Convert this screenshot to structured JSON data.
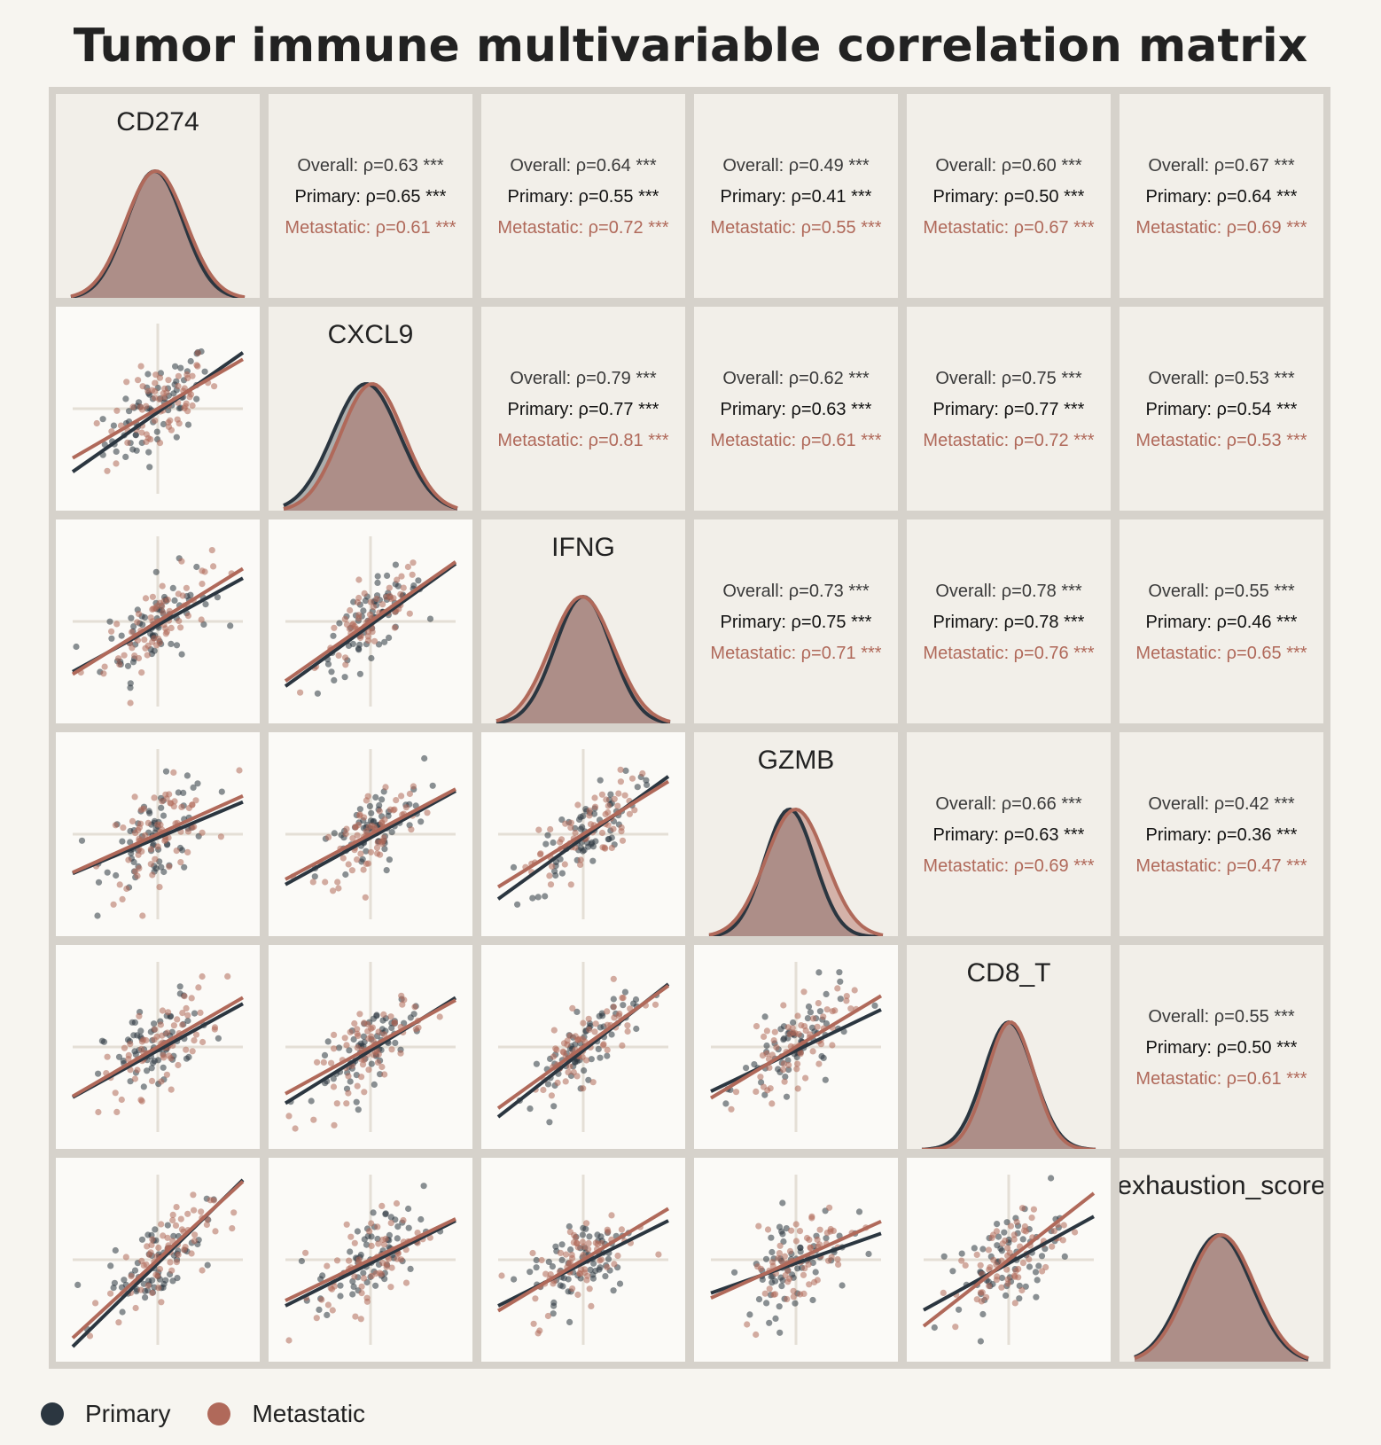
{
  "title": "Tumor immune multivariable correlation matrix",
  "colors": {
    "primary": "#2b3640",
    "metastatic": "#b0695a",
    "frame": "#d6d2cb",
    "background": "#f7f5f0"
  },
  "legend": [
    {
      "name": "Primary",
      "color": "#2b3640"
    },
    {
      "name": "Metastatic",
      "color": "#b0695a"
    }
  ],
  "chart_data": {
    "type": "scatter",
    "title": "Tumor immune multivariable correlation matrix",
    "variables": [
      "CD274",
      "CXCL9",
      "IFNG",
      "GZMB",
      "CD8_T",
      "exhaustion_score"
    ],
    "groups": [
      "Primary",
      "Metastatic"
    ],
    "correlations": [
      {
        "pair": [
          "CD274",
          "CXCL9"
        ],
        "overall": "Overall: ρ=0.63 ***",
        "primary": "Primary: ρ=0.65 ***",
        "metastatic": "Metastatic: ρ=0.61 ***"
      },
      {
        "pair": [
          "CD274",
          "IFNG"
        ],
        "overall": "Overall: ρ=0.64 ***",
        "primary": "Primary: ρ=0.55 ***",
        "metastatic": "Metastatic: ρ=0.72 ***"
      },
      {
        "pair": [
          "CD274",
          "GZMB"
        ],
        "overall": "Overall: ρ=0.49 ***",
        "primary": "Primary: ρ=0.41 ***",
        "metastatic": "Metastatic: ρ=0.55 ***"
      },
      {
        "pair": [
          "CD274",
          "CD8_T"
        ],
        "overall": "Overall: ρ=0.60 ***",
        "primary": "Primary: ρ=0.50 ***",
        "metastatic": "Metastatic: ρ=0.67 ***"
      },
      {
        "pair": [
          "CD274",
          "exhaustion_score"
        ],
        "overall": "Overall: ρ=0.67 ***",
        "primary": "Primary: ρ=0.64 ***",
        "metastatic": "Metastatic: ρ=0.69 ***"
      },
      {
        "pair": [
          "CXCL9",
          "IFNG"
        ],
        "overall": "Overall: ρ=0.79 ***",
        "primary": "Primary: ρ=0.77 ***",
        "metastatic": "Metastatic: ρ=0.81 ***"
      },
      {
        "pair": [
          "CXCL9",
          "GZMB"
        ],
        "overall": "Overall: ρ=0.62 ***",
        "primary": "Primary: ρ=0.63 ***",
        "metastatic": "Metastatic: ρ=0.61 ***"
      },
      {
        "pair": [
          "CXCL9",
          "CD8_T"
        ],
        "overall": "Overall: ρ=0.75 ***",
        "primary": "Primary: ρ=0.77 ***",
        "metastatic": "Metastatic: ρ=0.72 ***"
      },
      {
        "pair": [
          "CXCL9",
          "exhaustion_score"
        ],
        "overall": "Overall: ρ=0.53 ***",
        "primary": "Primary: ρ=0.54 ***",
        "metastatic": "Metastatic: ρ=0.53 ***"
      },
      {
        "pair": [
          "IFNG",
          "GZMB"
        ],
        "overall": "Overall: ρ=0.73 ***",
        "primary": "Primary: ρ=0.75 ***",
        "metastatic": "Metastatic: ρ=0.71 ***"
      },
      {
        "pair": [
          "IFNG",
          "CD8_T"
        ],
        "overall": "Overall: ρ=0.78 ***",
        "primary": "Primary: ρ=0.78 ***",
        "metastatic": "Metastatic: ρ=0.76 ***"
      },
      {
        "pair": [
          "IFNG",
          "exhaustion_score"
        ],
        "overall": "Overall: ρ=0.55 ***",
        "primary": "Primary: ρ=0.46 ***",
        "metastatic": "Metastatic: ρ=0.65 ***"
      },
      {
        "pair": [
          "GZMB",
          "CD8_T"
        ],
        "overall": "Overall: ρ=0.66 ***",
        "primary": "Primary: ρ=0.63 ***",
        "metastatic": "Metastatic: ρ=0.69 ***"
      },
      {
        "pair": [
          "GZMB",
          "exhaustion_score"
        ],
        "overall": "Overall: ρ=0.42 ***",
        "primary": "Primary: ρ=0.36 ***",
        "metastatic": "Metastatic: ρ=0.47 ***"
      },
      {
        "pair": [
          "CD8_T",
          "exhaustion_score"
        ],
        "overall": "Overall: ρ=0.55 ***",
        "primary": "Primary: ρ=0.50 ***",
        "metastatic": "Metastatic: ρ=0.61 ***"
      }
    ],
    "regression_slopes": {
      "CXCL9~CD274": {
        "primary": 0.7,
        "metastatic": 0.58
      },
      "IFNG~CD274": {
        "primary": 0.55,
        "metastatic": 0.62
      },
      "IFNG~CXCL9": {
        "primary": 0.72,
        "metastatic": 0.7
      },
      "GZMB~CD274": {
        "primary": 0.42,
        "metastatic": 0.45
      },
      "GZMB~CXCL9": {
        "primary": 0.55,
        "metastatic": 0.53
      },
      "GZMB~IFNG": {
        "primary": 0.72,
        "metastatic": 0.62
      },
      "CD8_T~CD274": {
        "primary": 0.55,
        "metastatic": 0.58
      },
      "CD8_T~CXCL9": {
        "primary": 0.62,
        "metastatic": 0.55
      },
      "CD8_T~IFNG": {
        "primary": 0.78,
        "metastatic": 0.72
      },
      "CD8_T~GZMB": {
        "primary": 0.48,
        "metastatic": 0.6
      },
      "exhaustion_score~CD274": {
        "primary": 0.98,
        "metastatic": 0.92
      },
      "exhaustion_score~CXCL9": {
        "primary": 0.5,
        "metastatic": 0.48
      },
      "exhaustion_score~IFNG": {
        "primary": 0.5,
        "metastatic": 0.6
      },
      "exhaustion_score~GZMB": {
        "primary": 0.35,
        "metastatic": 0.45
      },
      "exhaustion_score~CD8_T": {
        "primary": 0.55,
        "metastatic": 0.78
      }
    },
    "grid": true,
    "legend_position": "bottom-left"
  }
}
